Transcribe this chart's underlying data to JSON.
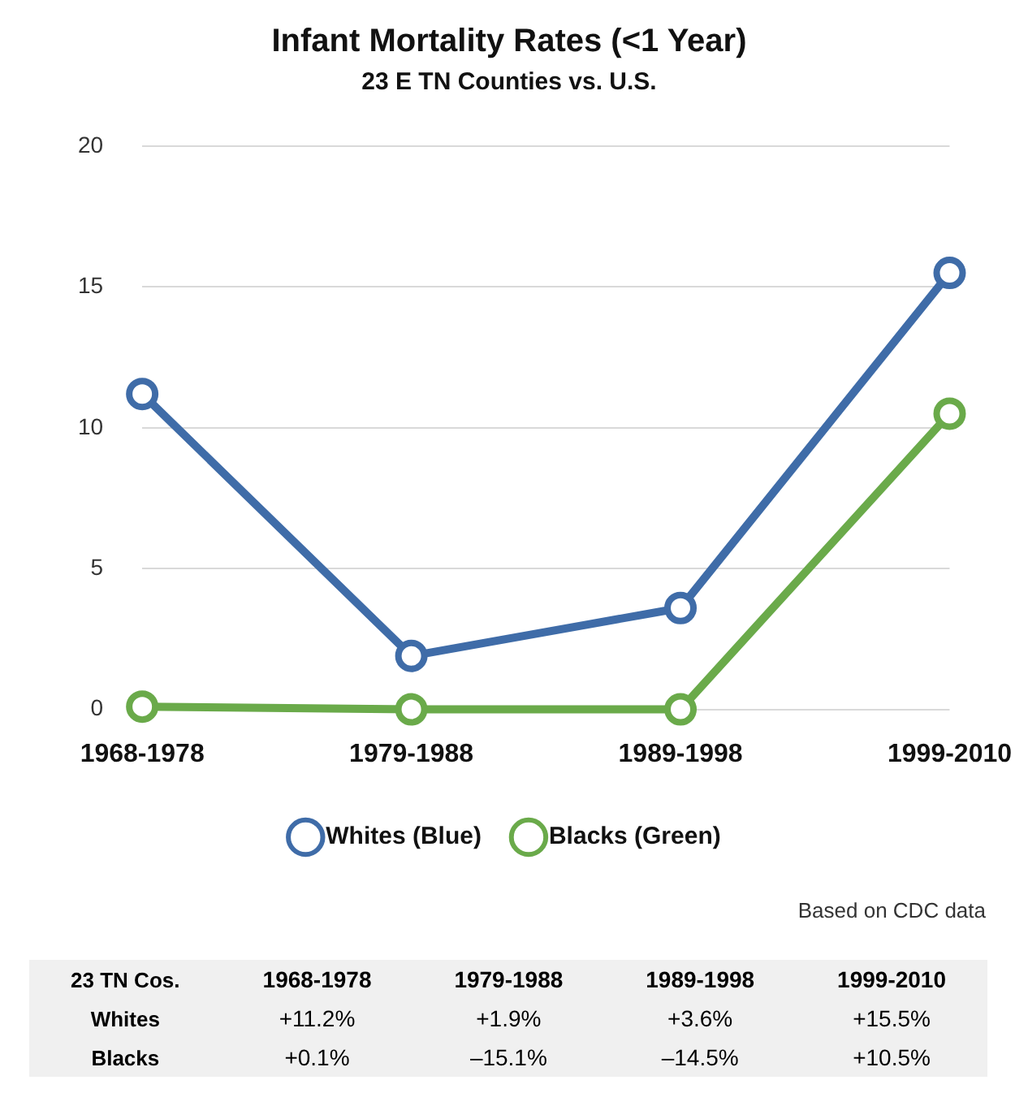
{
  "chart_data": {
    "type": "line",
    "title": "Infant Mortality Rates (<1 Year)",
    "subtitle": "23 E TN Counties vs. U.S.",
    "categories": [
      "1968-1978",
      "1979-1988",
      "1989-1998",
      "1999-2010"
    ],
    "series": [
      {
        "name": "Whites (Blue)",
        "color": "#3f6ca8",
        "values": [
          11.2,
          1.9,
          3.6,
          15.5
        ]
      },
      {
        "name": "Blacks (Green)",
        "color": "#6aaa4a",
        "values": [
          0.1,
          0,
          0,
          10.5
        ]
      }
    ],
    "ylim": [
      0,
      20
    ],
    "yticks": [
      0,
      5,
      10,
      15,
      20
    ],
    "grid": "y",
    "legend": "bottom",
    "marker": "circle",
    "line_style": "solid",
    "annotations": [
      "Based on CDC data",
      "23 TN Cos.",
      "Whites",
      "+11.2%",
      "+1.9%",
      "+3.6%",
      "+15.5%",
      "Blacks",
      "+0.1%",
      "–15.1%",
      "–14.5%",
      "+10.5%"
    ]
  }
}
